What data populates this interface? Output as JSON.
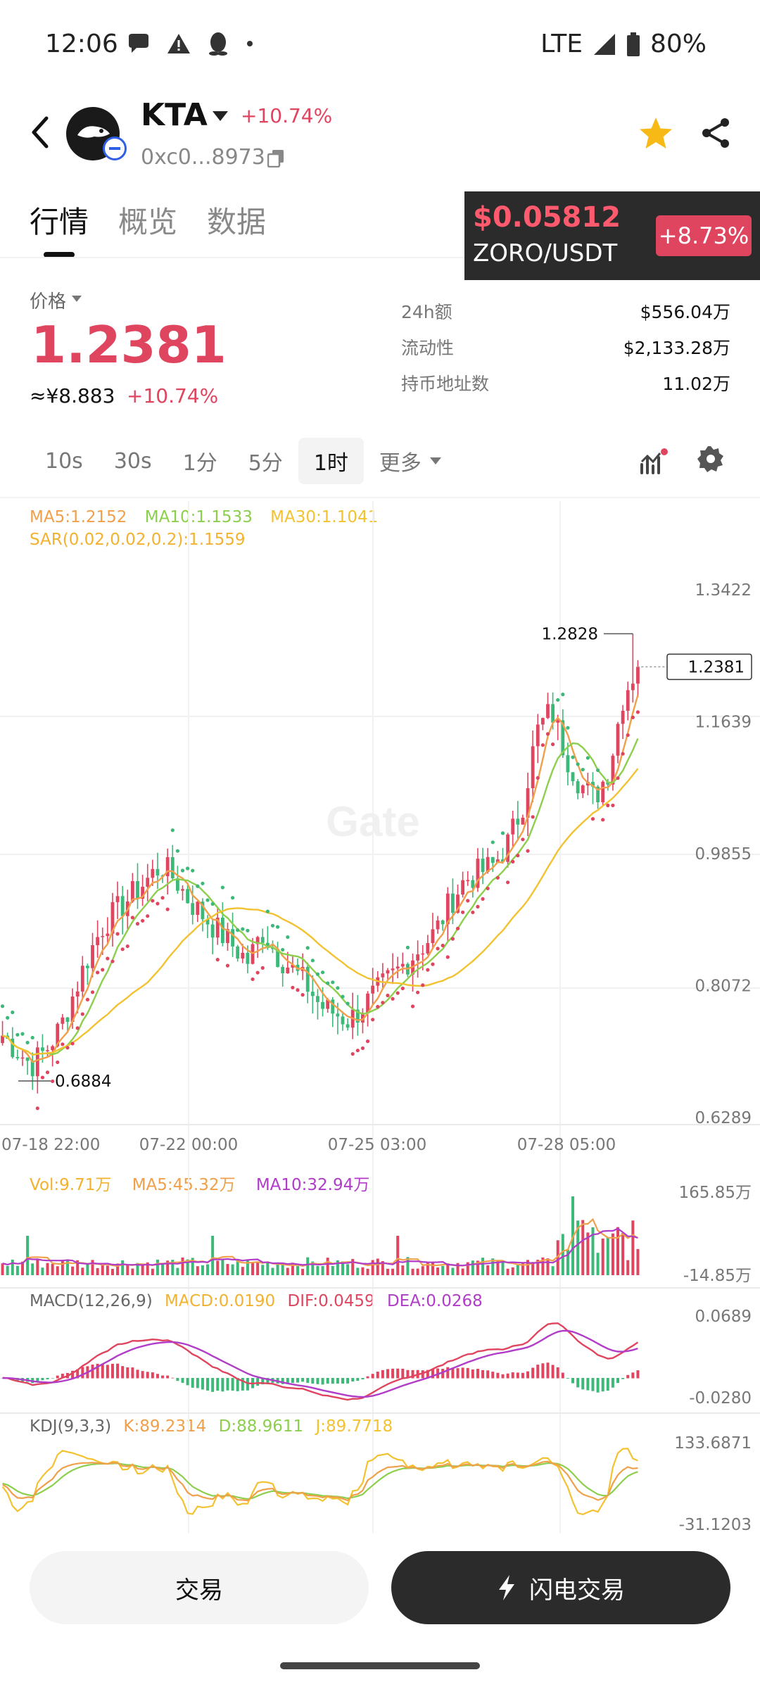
{
  "status_bar": {
    "time": "12:06",
    "network": "LTE",
    "battery": "80%",
    "icons": [
      "chat-bubble-icon",
      "warning-icon",
      "penguin-icon",
      "dot-icon",
      "signal-icon",
      "battery-icon"
    ]
  },
  "header": {
    "coin": "KTA",
    "change": "+10.74%",
    "address": "0xc0...8973",
    "favorite_color": "#f7b916"
  },
  "tabs": [
    {
      "label": "行情",
      "active": true
    },
    {
      "label": "概览",
      "active": false
    },
    {
      "label": "数据",
      "active": false
    }
  ],
  "ticker": {
    "price": "$0.05812",
    "pair": "ZORO/USDT",
    "change": "+8.73%"
  },
  "price": {
    "label": "价格",
    "value": "1.2381",
    "cny": "≈¥8.883",
    "change": "+10.74%"
  },
  "stats": [
    {
      "label": "24h额",
      "value": "$556.04万"
    },
    {
      "label": "流动性",
      "value": "$2,133.28万"
    },
    {
      "label": "持币地址数",
      "value": "11.02万"
    }
  ],
  "intervals": [
    {
      "label": "10s",
      "active": false
    },
    {
      "label": "30s",
      "active": false
    },
    {
      "label": "1分",
      "active": false
    },
    {
      "label": "5分",
      "active": false
    },
    {
      "label": "1时",
      "active": true
    },
    {
      "label": "更多",
      "active": false
    }
  ],
  "legends": {
    "ma5": "MA5:1.2152",
    "ma10": "MA10:1.1533",
    "ma30": "MA30:1.1041",
    "sar": "SAR(0.02,0.02,0.2):1.1559",
    "vol": "Vol:9.71万",
    "vol_ma5": "MA5:45.32万",
    "vol_ma10": "MA10:32.94万",
    "macd_title": "MACD(12,26,9)",
    "macd": "MACD:0.0190",
    "dif": "DIF:0.0459",
    "dea": "DEA:0.0268",
    "kdj_title": "KDJ(9,3,3)",
    "k": "K:89.2314",
    "d": "D:88.9611",
    "j": "J:89.7718"
  },
  "chart_data": {
    "type": "candlestick",
    "watermark": "Gate",
    "price_axis": [
      "1.3422",
      "1.1639",
      "0.9855",
      "0.8072",
      "0.6289"
    ],
    "ylim": [
      0.6289,
      1.3422
    ],
    "time_axis": [
      "07-18 22:00",
      "07-22 00:00",
      "07-25 03:00",
      "07-28 05:00"
    ],
    "high_label": "1.2828",
    "low_label": "0.6884",
    "last_price": "1.2381",
    "close_series": [
      0.74,
      0.72,
      0.7,
      0.72,
      0.75,
      0.8,
      0.85,
      0.89,
      0.91,
      0.93,
      0.95,
      0.97,
      0.95,
      0.92,
      0.9,
      0.88,
      0.86,
      0.84,
      0.88,
      0.85,
      0.83,
      0.81,
      0.78,
      0.77,
      0.76,
      0.78,
      0.8,
      0.82,
      0.84,
      0.86,
      0.88,
      0.92,
      0.95,
      0.96,
      0.97,
      1.0,
      1.05,
      1.15,
      1.18,
      1.12,
      1.08,
      1.06,
      1.1,
      1.2,
      1.24
    ],
    "volume_axis": [
      "165.85万",
      "-14.85万"
    ],
    "macd_axis": [
      "0.0689",
      "-0.0280"
    ],
    "kdj_axis": [
      "133.6871",
      "-31.1203"
    ],
    "colors": {
      "up": "#e0455f",
      "down": "#3cb878",
      "ma5": "#f0a04b",
      "ma10": "#8ccf4d",
      "ma30": "#f2c230",
      "sar": "#f2b230",
      "purple": "#b03cc8"
    }
  },
  "buttons": {
    "trade": "交易",
    "flash_trade": "闪电交易"
  }
}
